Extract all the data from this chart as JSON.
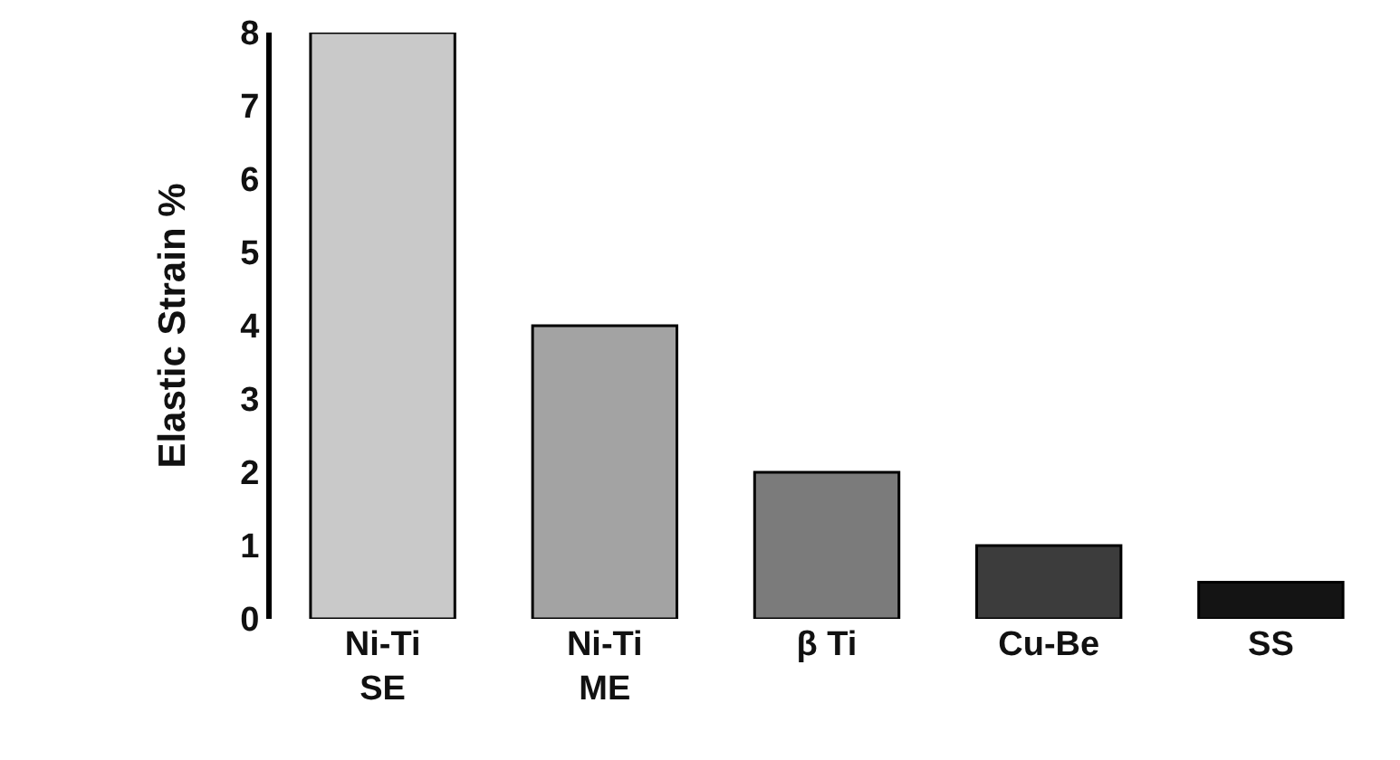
{
  "chart_data": {
    "type": "bar",
    "ylabel": "Elastic Strain %",
    "categories": [
      "Ni-Ti\nSE",
      "Ni-Ti\nME",
      "β Ti",
      "Cu-Be",
      "SS"
    ],
    "values": [
      8,
      4,
      2,
      1,
      0.5
    ],
    "colors": [
      "#c9c9c9",
      "#a3a3a3",
      "#7b7b7b",
      "#3c3c3c",
      "#141414"
    ],
    "ylim": [
      0,
      8
    ],
    "yticks": [
      0,
      1,
      2,
      3,
      4,
      5,
      6,
      7,
      8
    ],
    "grid": false
  }
}
